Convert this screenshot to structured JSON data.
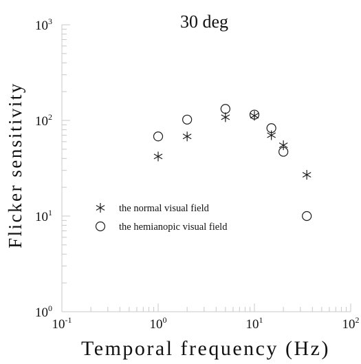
{
  "chart_data": {
    "type": "scatter",
    "title": "30 deg",
    "xlabel": "Temporal frequency (Hz)",
    "ylabel": "Flicker sensitivity",
    "x_scale": "log",
    "y_scale": "log",
    "xlim": [
      0.1,
      100
    ],
    "ylim": [
      1,
      1000
    ],
    "x_ticks": [
      {
        "base": "10",
        "exp": "-1"
      },
      {
        "base": "10",
        "exp": "0"
      },
      {
        "base": "10",
        "exp": "1"
      },
      {
        "base": "10",
        "exp": "2"
      }
    ],
    "y_ticks": [
      {
        "base": "10",
        "exp": "0"
      },
      {
        "base": "10",
        "exp": "1"
      },
      {
        "base": "10",
        "exp": "2"
      },
      {
        "base": "10",
        "exp": "3"
      }
    ],
    "grid": false,
    "legend_position": "center-left",
    "series": [
      {
        "name": "the normal visual field",
        "marker": "asterisk",
        "points": [
          {
            "x": 1,
            "y": 42
          },
          {
            "x": 2,
            "y": 68
          },
          {
            "x": 5,
            "y": 108
          },
          {
            "x": 10,
            "y": 112
          },
          {
            "x": 15,
            "y": 70
          },
          {
            "x": 20,
            "y": 55
          },
          {
            "x": 35,
            "y": 27
          }
        ]
      },
      {
        "name": "the hemianopic visual field",
        "marker": "circle",
        "points": [
          {
            "x": 1,
            "y": 68
          },
          {
            "x": 2,
            "y": 102
          },
          {
            "x": 5,
            "y": 132
          },
          {
            "x": 10,
            "y": 115
          },
          {
            "x": 15,
            "y": 83
          },
          {
            "x": 20,
            "y": 47
          },
          {
            "x": 35,
            "y": 10
          }
        ]
      }
    ]
  }
}
